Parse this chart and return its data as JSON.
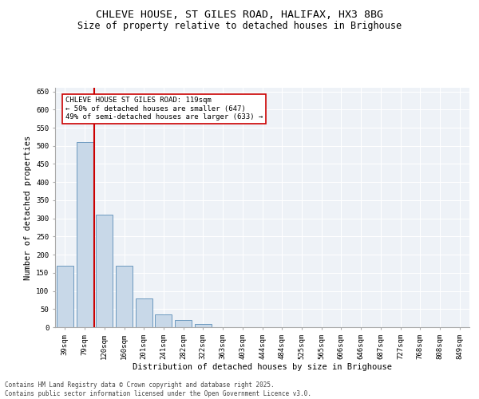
{
  "title_line1": "CHLEVE HOUSE, ST GILES ROAD, HALIFAX, HX3 8BG",
  "title_line2": "Size of property relative to detached houses in Brighouse",
  "xlabel": "Distribution of detached houses by size in Brighouse",
  "ylabel": "Number of detached properties",
  "categories": [
    "39sqm",
    "79sqm",
    "120sqm",
    "160sqm",
    "201sqm",
    "241sqm",
    "282sqm",
    "322sqm",
    "363sqm",
    "403sqm",
    "444sqm",
    "484sqm",
    "525sqm",
    "565sqm",
    "606sqm",
    "646sqm",
    "687sqm",
    "727sqm",
    "768sqm",
    "808sqm",
    "849sqm"
  ],
  "values": [
    170,
    510,
    310,
    170,
    80,
    35,
    20,
    8,
    0,
    0,
    0,
    0,
    0,
    0,
    0,
    0,
    0,
    0,
    0,
    0,
    0
  ],
  "bar_color": "#c8d8e8",
  "bar_edge_color": "#5b8db8",
  "vline_color": "#cc0000",
  "annotation_text": "CHLEVE HOUSE ST GILES ROAD: 119sqm\n← 50% of detached houses are smaller (647)\n49% of semi-detached houses are larger (633) →",
  "annotation_box_color": "#ffffff",
  "annotation_box_edge": "#cc0000",
  "ylim": [
    0,
    660
  ],
  "yticks": [
    0,
    50,
    100,
    150,
    200,
    250,
    300,
    350,
    400,
    450,
    500,
    550,
    600,
    650
  ],
  "background_color": "#eef2f7",
  "footer_line1": "Contains HM Land Registry data © Crown copyright and database right 2025.",
  "footer_line2": "Contains public sector information licensed under the Open Government Licence v3.0.",
  "title_fontsize": 9.5,
  "subtitle_fontsize": 8.5,
  "axis_label_fontsize": 7.5,
  "tick_fontsize": 6.5,
  "annotation_fontsize": 6.5,
  "footer_fontsize": 5.5
}
